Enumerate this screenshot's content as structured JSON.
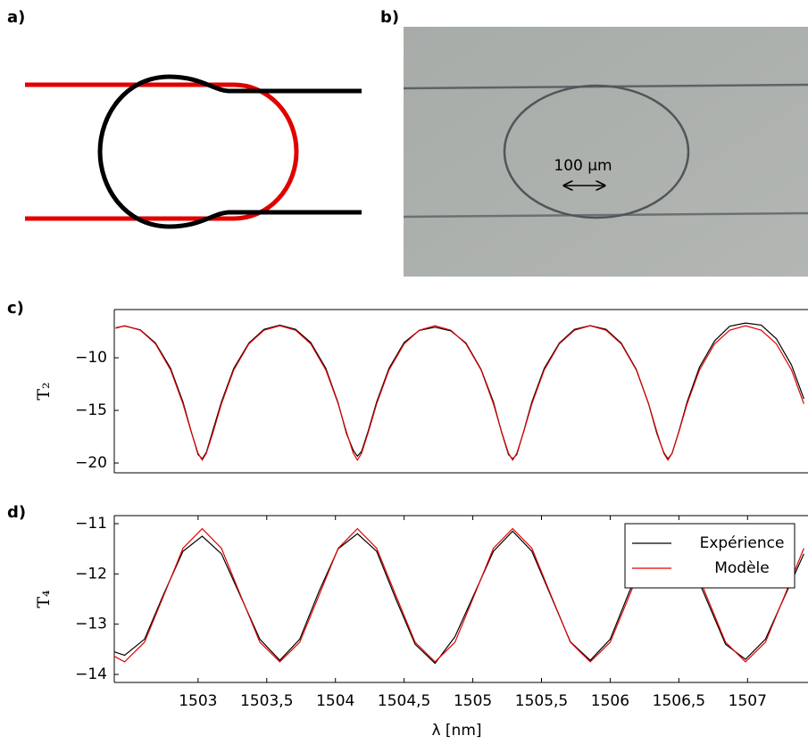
{
  "panel_labels": [
    "a)",
    "b)",
    "c)",
    "d)"
  ],
  "micrograph": {
    "scale_label": "100 µm"
  },
  "chart_data": [
    {
      "type": "line",
      "ylabel": "T₂",
      "xlim": [
        1502.39,
        1507.44
      ],
      "ylim": [
        -20.93,
        -5.42
      ],
      "yticks": [
        {
          "value": -20,
          "label": "−20"
        },
        {
          "value": -15,
          "label": "−15"
        },
        {
          "value": -10,
          "label": "−10"
        }
      ],
      "x": [
        1502.4,
        1502.465,
        1502.58,
        1502.69,
        1502.8,
        1502.89,
        1502.95,
        1503.0,
        1503.03,
        1503.06,
        1503.11,
        1503.17,
        1503.26,
        1503.37,
        1503.48,
        1503.595,
        1503.71,
        1503.82,
        1503.93,
        1504.02,
        1504.08,
        1504.13,
        1504.16,
        1504.19,
        1504.24,
        1504.3,
        1504.39,
        1504.5,
        1504.61,
        1504.725,
        1504.84,
        1504.95,
        1505.06,
        1505.15,
        1505.21,
        1505.26,
        1505.29,
        1505.32,
        1505.37,
        1505.43,
        1505.52,
        1505.63,
        1505.74,
        1505.855,
        1505.97,
        1506.08,
        1506.19,
        1506.28,
        1506.34,
        1506.39,
        1506.42,
        1506.45,
        1506.5,
        1506.56,
        1506.65,
        1506.76,
        1506.87,
        1506.985,
        1507.1,
        1507.21,
        1507.32,
        1507.41
      ],
      "series": [
        {
          "color": "#000000",
          "values": [
            -7.15,
            -6.98,
            -7.35,
            -8.6,
            -11.0,
            -14.2,
            -17.0,
            -19.2,
            -19.6,
            -19.0,
            -16.8,
            -14.2,
            -11.0,
            -8.6,
            -7.3,
            -6.9,
            -7.3,
            -8.55,
            -11.0,
            -14.3,
            -17.2,
            -18.8,
            -19.35,
            -18.9,
            -16.9,
            -14.2,
            -11.0,
            -8.55,
            -7.4,
            -7.1,
            -7.45,
            -8.6,
            -11.1,
            -14.2,
            -17.1,
            -19.2,
            -19.6,
            -19.2,
            -17.0,
            -14.2,
            -11.0,
            -8.6,
            -7.3,
            -6.95,
            -7.3,
            -8.6,
            -11.1,
            -14.4,
            -17.2,
            -19.0,
            -19.6,
            -19.1,
            -17.0,
            -14.2,
            -10.9,
            -8.4,
            -7.0,
            -6.7,
            -6.9,
            -8.2,
            -10.7,
            -13.9
          ]
        },
        {
          "color": "#e00000",
          "values": [
            -7.2,
            -6.96,
            -7.38,
            -8.68,
            -11.16,
            -14.38,
            -17.05,
            -19.08,
            -19.72,
            -19.08,
            -17.05,
            -14.38,
            -11.16,
            -8.68,
            -7.38,
            -6.96,
            -7.38,
            -8.68,
            -11.16,
            -14.38,
            -17.05,
            -19.08,
            -19.72,
            -19.08,
            -17.05,
            -14.38,
            -11.16,
            -8.68,
            -7.38,
            -6.96,
            -7.38,
            -8.68,
            -11.16,
            -14.38,
            -17.05,
            -19.08,
            -19.72,
            -19.08,
            -17.05,
            -14.38,
            -11.16,
            -8.68,
            -7.38,
            -6.96,
            -7.38,
            -8.68,
            -11.16,
            -14.38,
            -17.05,
            -19.08,
            -19.72,
            -19.08,
            -17.05,
            -14.38,
            -11.16,
            -8.68,
            -7.38,
            -6.96,
            -7.38,
            -8.68,
            -11.16,
            -14.38
          ]
        }
      ]
    },
    {
      "type": "line",
      "ylabel": "T₄",
      "xlabel": "λ [nm]",
      "legend": "upper right",
      "xlim": [
        1502.39,
        1507.44
      ],
      "ylim": [
        -14.16,
        -10.84
      ],
      "xticks": [
        1503,
        {
          "value": 1503.5,
          "label": "1503,5"
        },
        1504,
        {
          "value": 1504.5,
          "label": "1504,5"
        },
        1505,
        {
          "value": 1505.5,
          "label": "1505,5"
        },
        1506,
        {
          "value": 1506.5,
          "label": "1506,5"
        },
        1507
      ],
      "yticks": [
        {
          "value": -14,
          "label": "−14"
        },
        {
          "value": -13,
          "label": "−13"
        },
        {
          "value": -12,
          "label": "−12"
        },
        {
          "value": -11,
          "label": "−11"
        }
      ],
      "x": [
        1502.39,
        1502.465,
        1502.61,
        1502.75,
        1502.89,
        1503.03,
        1503.17,
        1503.31,
        1503.45,
        1503.595,
        1503.74,
        1503.88,
        1504.02,
        1504.16,
        1504.3,
        1504.44,
        1504.58,
        1504.725,
        1504.87,
        1505.01,
        1505.15,
        1505.29,
        1505.43,
        1505.57,
        1505.71,
        1505.855,
        1506.0,
        1506.14,
        1506.28,
        1506.42,
        1506.56,
        1506.7,
        1506.84,
        1506.985,
        1507.13,
        1507.27,
        1507.41
      ],
      "series": [
        {
          "name": "Expérience",
          "color": "#000000",
          "values": [
            -13.55,
            -13.62,
            -13.3,
            -12.4,
            -11.55,
            -11.25,
            -11.6,
            -12.45,
            -13.3,
            -13.72,
            -13.3,
            -12.35,
            -11.5,
            -11.2,
            -11.55,
            -12.5,
            -13.4,
            -13.78,
            -13.25,
            -12.4,
            -11.55,
            -11.15,
            -11.55,
            -12.45,
            -13.35,
            -13.72,
            -13.3,
            -12.35,
            -11.55,
            -11.25,
            -11.6,
            -12.5,
            -13.4,
            -13.7,
            -13.3,
            -12.45,
            -11.6
          ]
        },
        {
          "name": "Modèle",
          "color": "#e00000",
          "values": [
            -13.64,
            -13.75,
            -13.36,
            -12.43,
            -11.49,
            -11.1,
            -11.49,
            -12.43,
            -13.36,
            -13.75,
            -13.36,
            -12.43,
            -11.49,
            -11.1,
            -11.49,
            -12.43,
            -13.36,
            -13.75,
            -13.36,
            -12.43,
            -11.49,
            -11.1,
            -11.49,
            -12.43,
            -13.36,
            -13.75,
            -13.36,
            -12.43,
            -11.49,
            -11.1,
            -11.49,
            -12.43,
            -13.36,
            -13.75,
            -13.36,
            -12.43,
            -11.49
          ]
        }
      ]
    }
  ]
}
